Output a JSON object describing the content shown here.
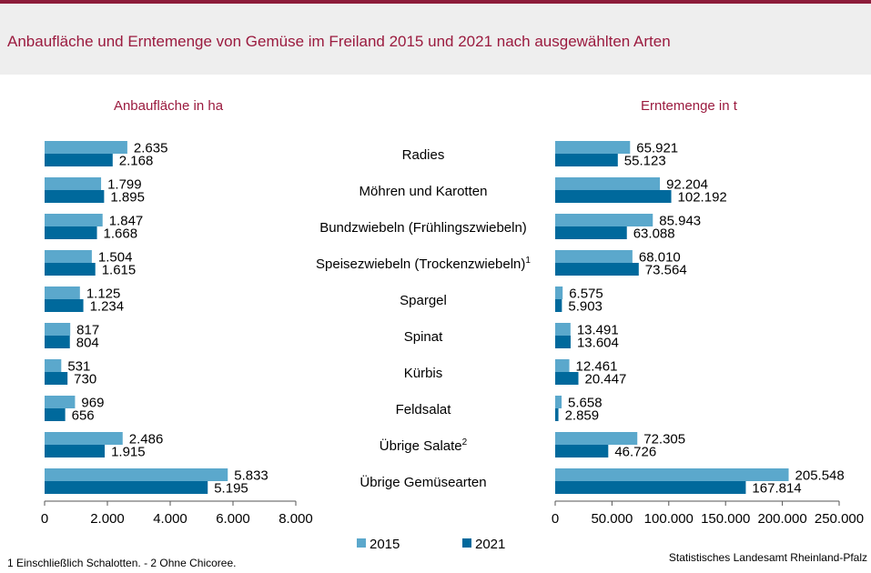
{
  "title": "Anbaufläche und Erntemenge von Gemüse im Freiland 2015 und 2021 nach ausgewählten Arten",
  "footnote": "1 Einschließlich Schalotten. - 2 Ohne Chicoree.",
  "source": "Statistisches Landesamt Rheinland-Pfalz",
  "colors": {
    "s2015": "#5ba8cc",
    "s2021": "#00699c",
    "title": "#9b1b3f"
  },
  "chart_data": {
    "type": "bar",
    "orientation": "horizontal",
    "categories": [
      {
        "label": "Radies",
        "sup": ""
      },
      {
        "label": "Möhren und Karotten",
        "sup": ""
      },
      {
        "label": "Bundzwiebeln (Frühlingszwiebeln)",
        "sup": ""
      },
      {
        "label": "Speisezwiebeln (Trockenzwiebeln)",
        "sup": "1"
      },
      {
        "label": "Spargel",
        "sup": ""
      },
      {
        "label": "Spinat",
        "sup": ""
      },
      {
        "label": "Kürbis",
        "sup": ""
      },
      {
        "label": "Feldsalat",
        "sup": ""
      },
      {
        "label": "Übrige Salate",
        "sup": "2"
      },
      {
        "label": "Übrige Gemüsearten",
        "sup": ""
      }
    ],
    "legend": [
      {
        "name": "2015",
        "color": "#5ba8cc"
      },
      {
        "name": "2021",
        "color": "#00699c"
      }
    ],
    "panels": [
      {
        "title": "Anbaufläche in ha",
        "xlim": [
          0,
          8000
        ],
        "ticks": [
          0,
          2000,
          4000,
          6000,
          8000
        ],
        "tick_labels": [
          "0",
          "2.000",
          "4.000",
          "6.000",
          "8.000"
        ],
        "series": [
          {
            "name": "2015",
            "values": [
              2635,
              1799,
              1847,
              1504,
              1125,
              817,
              531,
              969,
              2486,
              5833
            ],
            "labels": [
              "2.635",
              "1.799",
              "1.847",
              "1.504",
              "1.125",
              "817",
              "531",
              "969",
              "2.486",
              "5.833"
            ]
          },
          {
            "name": "2021",
            "values": [
              2168,
              1895,
              1668,
              1615,
              1234,
              804,
              730,
              656,
              1915,
              5195
            ],
            "labels": [
              "2.168",
              "1.895",
              "1.668",
              "1.615",
              "1.234",
              "804",
              "730",
              "656",
              "1.915",
              "5.195"
            ]
          }
        ]
      },
      {
        "title": "Erntemenge in t",
        "xlim": [
          0,
          250000
        ],
        "ticks": [
          0,
          50000,
          100000,
          150000,
          200000,
          250000
        ],
        "tick_labels": [
          "0",
          "50.000",
          "100.000",
          "150.000",
          "200.000",
          "250.000"
        ],
        "series": [
          {
            "name": "2015",
            "values": [
              65921,
              92204,
              85943,
              68010,
              6575,
              13491,
              12461,
              5658,
              72305,
              205548
            ],
            "labels": [
              "65.921",
              "92.204",
              "85.943",
              "68.010",
              "6.575",
              "13.491",
              "12.461",
              "5.658",
              "72.305",
              "205.548"
            ]
          },
          {
            "name": "2021",
            "values": [
              55123,
              102192,
              63088,
              73564,
              5903,
              13604,
              20447,
              2859,
              46726,
              167814
            ],
            "labels": [
              "55.123",
              "102.192",
              "63.088",
              "73.564",
              "5.903",
              "13.604",
              "20.447",
              "2.859",
              "46.726",
              "167.814"
            ]
          }
        ]
      }
    ]
  }
}
